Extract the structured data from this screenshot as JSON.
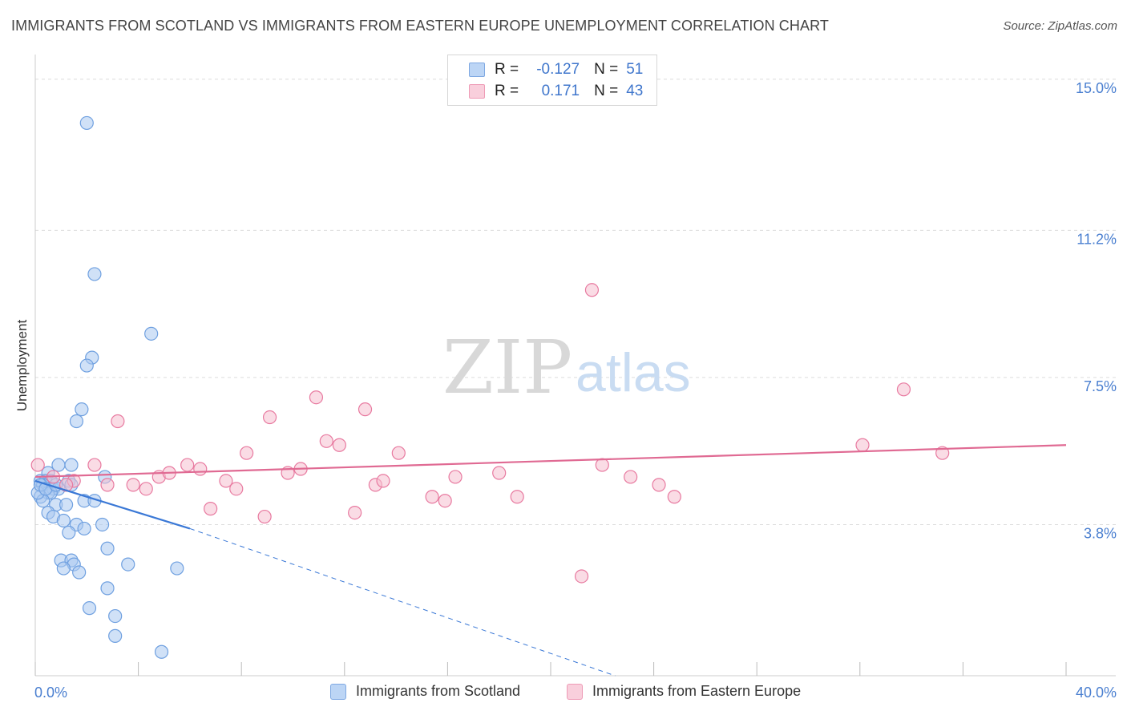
{
  "title": "IMMIGRANTS FROM SCOTLAND VS IMMIGRANTS FROM EASTERN EUROPE UNEMPLOYMENT CORRELATION CHART",
  "source": "Source: ZipAtlas.com",
  "watermark": {
    "zip": "ZIP",
    "atlas": "atlas"
  },
  "legend": {
    "r_label": "R =",
    "n_label": "N =",
    "rows": [
      {
        "r": "-0.127",
        "n": "51",
        "color": "#a9c8f0"
      },
      {
        "r": "0.171",
        "n": "43",
        "color": "#f6bfd0"
      }
    ]
  },
  "chart_data": {
    "type": "scatter",
    "title": "IMMIGRANTS FROM SCOTLAND VS IMMIGRANTS FROM EASTERN EUROPE UNEMPLOYMENT CORRELATION CHART",
    "xlabel": "",
    "ylabel": "Unemployment",
    "xlim": [
      0,
      40
    ],
    "ylim": [
      0,
      15.4
    ],
    "x_tick_labels": [
      "0.0%",
      "40.0%"
    ],
    "y_ticks": [
      3.8,
      7.5,
      11.2,
      15.0
    ],
    "y_tick_labels": [
      "3.8%",
      "7.5%",
      "11.2%",
      "15.0%"
    ],
    "grid": true,
    "legend_position": "top-center",
    "series": [
      {
        "name": "Immigrants from Scotland",
        "color": "#6fa0e0",
        "fill": "#a9c8f0",
        "points": [
          [
            2.0,
            13.9
          ],
          [
            2.3,
            10.1
          ],
          [
            4.5,
            8.6
          ],
          [
            2.2,
            8.0
          ],
          [
            2.0,
            7.8
          ],
          [
            1.8,
            6.7
          ],
          [
            1.6,
            6.4
          ],
          [
            0.9,
            5.3
          ],
          [
            1.4,
            5.3
          ],
          [
            0.5,
            5.1
          ],
          [
            2.7,
            5.0
          ],
          [
            0.2,
            4.9
          ],
          [
            0.4,
            4.9
          ],
          [
            0.6,
            4.9
          ],
          [
            1.3,
            4.9
          ],
          [
            0.3,
            4.8
          ],
          [
            1.4,
            4.8
          ],
          [
            0.7,
            4.7
          ],
          [
            0.9,
            4.7
          ],
          [
            0.5,
            4.6
          ],
          [
            0.6,
            4.6
          ],
          [
            0.2,
            4.5
          ],
          [
            0.3,
            4.4
          ],
          [
            1.9,
            4.4
          ],
          [
            2.3,
            4.4
          ],
          [
            0.8,
            4.3
          ],
          [
            1.2,
            4.3
          ],
          [
            0.5,
            4.1
          ],
          [
            0.7,
            4.0
          ],
          [
            1.1,
            3.9
          ],
          [
            1.6,
            3.8
          ],
          [
            2.6,
            3.8
          ],
          [
            1.9,
            3.7
          ],
          [
            1.3,
            3.6
          ],
          [
            2.8,
            3.2
          ],
          [
            1.0,
            2.9
          ],
          [
            1.4,
            2.9
          ],
          [
            3.6,
            2.8
          ],
          [
            1.5,
            2.8
          ],
          [
            1.1,
            2.7
          ],
          [
            1.7,
            2.6
          ],
          [
            5.5,
            2.7
          ],
          [
            2.8,
            2.2
          ],
          [
            2.1,
            1.7
          ],
          [
            3.1,
            1.5
          ],
          [
            3.1,
            1.0
          ],
          [
            4.9,
            0.6
          ],
          [
            0.1,
            4.6
          ],
          [
            0.2,
            4.8
          ],
          [
            0.4,
            4.7
          ],
          [
            0.8,
            4.8
          ]
        ],
        "trend": {
          "x": [
            0,
            6.0
          ],
          "y": [
            4.9,
            3.7
          ],
          "dashed_to": [
            22.5,
            0
          ]
        }
      },
      {
        "name": "Immigrants from Eastern Europe",
        "color": "#e87aa0",
        "fill": "#f6bfd0",
        "points": [
          [
            0.1,
            5.3
          ],
          [
            1.5,
            4.9
          ],
          [
            2.3,
            5.3
          ],
          [
            3.2,
            6.4
          ],
          [
            2.8,
            4.8
          ],
          [
            3.8,
            4.8
          ],
          [
            4.3,
            4.7
          ],
          [
            4.8,
            5.0
          ],
          [
            5.2,
            5.1
          ],
          [
            5.9,
            5.3
          ],
          [
            6.4,
            5.2
          ],
          [
            6.8,
            4.2
          ],
          [
            7.4,
            4.9
          ],
          [
            8.2,
            5.6
          ],
          [
            7.8,
            4.7
          ],
          [
            9.1,
            6.5
          ],
          [
            8.9,
            4.0
          ],
          [
            9.8,
            5.1
          ],
          [
            10.3,
            5.2
          ],
          [
            10.9,
            7.0
          ],
          [
            11.3,
            5.9
          ],
          [
            11.8,
            5.8
          ],
          [
            12.4,
            4.1
          ],
          [
            12.8,
            6.7
          ],
          [
            13.2,
            4.8
          ],
          [
            13.5,
            4.9
          ],
          [
            14.1,
            5.6
          ],
          [
            15.4,
            4.5
          ],
          [
            15.9,
            4.4
          ],
          [
            16.3,
            5.0
          ],
          [
            18.0,
            5.1
          ],
          [
            18.7,
            4.5
          ],
          [
            21.2,
            2.5
          ],
          [
            21.6,
            9.7
          ],
          [
            22.0,
            5.3
          ],
          [
            23.1,
            5.0
          ],
          [
            24.2,
            4.8
          ],
          [
            24.8,
            4.5
          ],
          [
            32.1,
            5.8
          ],
          [
            33.7,
            7.2
          ],
          [
            35.2,
            5.6
          ],
          [
            1.2,
            4.8
          ],
          [
            0.7,
            5.0
          ]
        ],
        "trend": {
          "x": [
            0,
            40
          ],
          "y": [
            5.0,
            5.8
          ]
        }
      }
    ]
  }
}
